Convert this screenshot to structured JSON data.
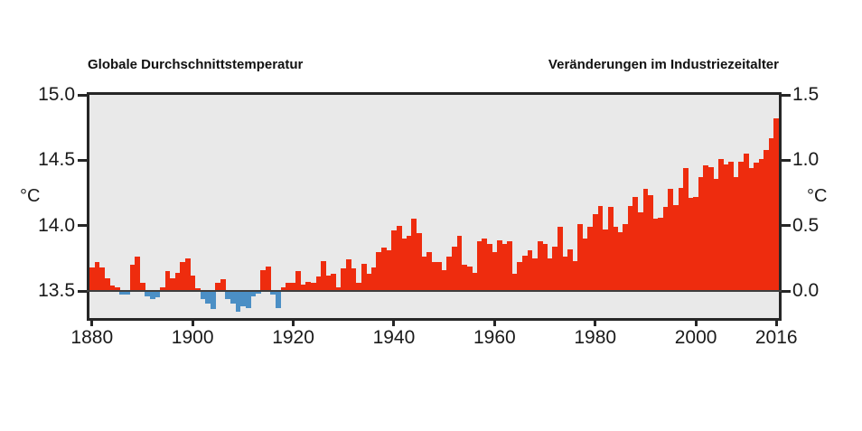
{
  "titles": {
    "left": "Globale Durchschnittstemperatur",
    "right": "Veränderungen im Industriezeitalter"
  },
  "chart_data": {
    "type": "bar",
    "title_left": "Globale Durchschnittstemperatur",
    "title_right": "Veränderungen im Industriezeitalter",
    "x_start_year": 1880,
    "x_end_year": 2016,
    "note": "Bars show global mean temperature; left axis absolute °C, right axis change vs. baseline (13.5 °C = 0.0). Red = above baseline, blue = below baseline.",
    "baseline_absolute_c": 13.5,
    "anomaly_c": [
      0.18,
      0.22,
      0.18,
      0.1,
      0.04,
      0.03,
      -0.03,
      -0.03,
      0.2,
      0.26,
      0.06,
      -0.04,
      -0.06,
      -0.05,
      0.03,
      0.15,
      0.1,
      0.14,
      0.22,
      0.25,
      0.12,
      0.02,
      -0.06,
      -0.1,
      -0.14,
      0.06,
      0.09,
      -0.06,
      -0.1,
      -0.16,
      -0.12,
      -0.13,
      -0.04,
      -0.02,
      0.16,
      0.19,
      -0.03,
      -0.13,
      0.03,
      0.06,
      0.06,
      0.15,
      0.05,
      0.07,
      0.06,
      0.11,
      0.23,
      0.12,
      0.13,
      0.03,
      0.17,
      0.24,
      0.17,
      0.06,
      0.21,
      0.13,
      0.18,
      0.3,
      0.33,
      0.31,
      0.46,
      0.5,
      0.4,
      0.42,
      0.55,
      0.44,
      0.26,
      0.3,
      0.22,
      0.22,
      0.16,
      0.26,
      0.34,
      0.42,
      0.2,
      0.19,
      0.14,
      0.38,
      0.4,
      0.36,
      0.3,
      0.39,
      0.36,
      0.38,
      0.13,
      0.22,
      0.27,
      0.31,
      0.25,
      0.38,
      0.36,
      0.25,
      0.34,
      0.49,
      0.26,
      0.32,
      0.23,
      0.51,
      0.4,
      0.49,
      0.59,
      0.65,
      0.47,
      0.64,
      0.49,
      0.45,
      0.51,
      0.65,
      0.72,
      0.6,
      0.78,
      0.73,
      0.55,
      0.56,
      0.64,
      0.78,
      0.66,
      0.79,
      0.94,
      0.71,
      0.72,
      0.87,
      0.96,
      0.95,
      0.86,
      1.01,
      0.97,
      0.99,
      0.87,
      0.99,
      1.05,
      0.94,
      0.98,
      1.01,
      1.08,
      1.17,
      1.32
    ],
    "left_axis": {
      "unit": "°C",
      "ticks": [
        {
          "label": "15.0",
          "value": 15.0
        },
        {
          "label": "14.5",
          "value": 14.5
        },
        {
          "label": "14.0",
          "value": 14.0
        },
        {
          "label": "13.5",
          "value": 13.5
        }
      ],
      "range_shown": [
        13.29,
        15.0
      ]
    },
    "right_axis": {
      "unit": "°C",
      "ticks": [
        {
          "label": "1.5",
          "value": 1.5
        },
        {
          "label": "1.0",
          "value": 1.0
        },
        {
          "label": "0.5",
          "value": 0.5
        },
        {
          "label": "0.0",
          "value": 0.0
        }
      ],
      "range_shown": [
        -0.21,
        1.5
      ]
    },
    "x_axis": {
      "ticks": [
        {
          "label": "1880",
          "year": 1880
        },
        {
          "label": "1900",
          "year": 1900
        },
        {
          "label": "1920",
          "year": 1920
        },
        {
          "label": "1940",
          "year": 1940
        },
        {
          "label": "1960",
          "year": 1960
        },
        {
          "label": "1980",
          "year": 1980
        },
        {
          "label": "2000",
          "year": 2000
        },
        {
          "label": "2016",
          "year": 2016
        }
      ]
    },
    "colors": {
      "positive_bar": "#ee2c0e",
      "negative_bar": "#4b8fc5",
      "plot_background": "#e9e9e9",
      "axis_frame": "#262626",
      "baseline_line": "#3e3e3e",
      "text": "#1a1a1a"
    },
    "grid": false,
    "legend": false
  }
}
